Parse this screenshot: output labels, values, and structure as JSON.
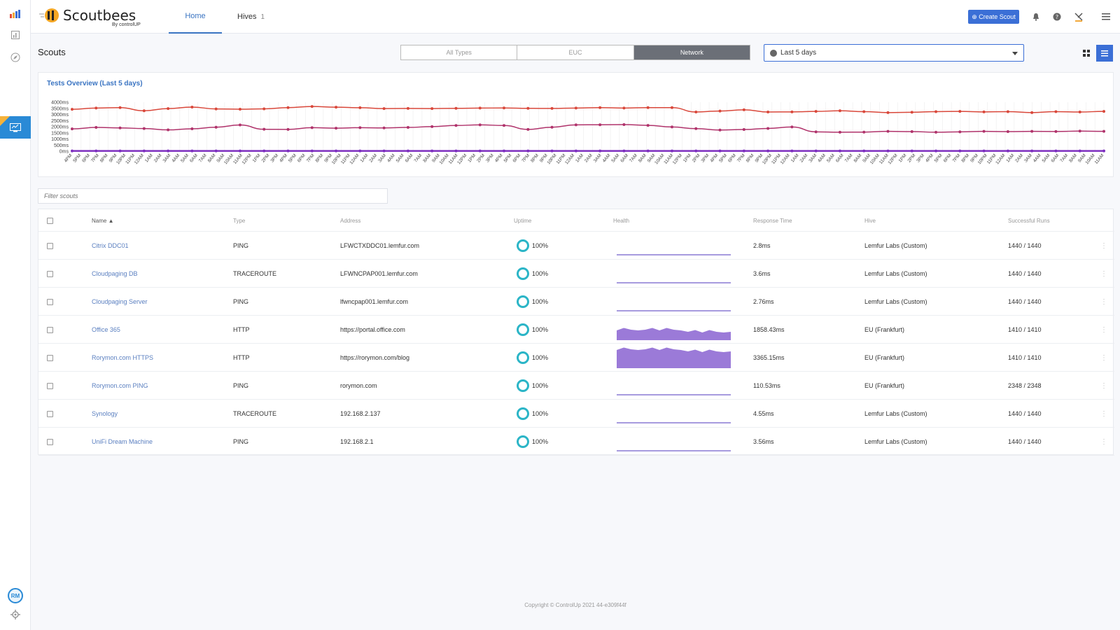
{
  "app": {
    "brand": "Scoutbees",
    "brand_sub": "By controlUP"
  },
  "rail": {
    "icons": [
      "bar-chart-icon",
      "report-icon",
      "compass-icon",
      "monitor-icon",
      "avatar",
      "gear-icon"
    ],
    "avatar_initials": "RM"
  },
  "topnav": {
    "tabs": [
      {
        "label": "Home",
        "active": true
      },
      {
        "label": "Hives",
        "count": "1"
      }
    ],
    "create_scout": "⊕ Create Scout"
  },
  "page": {
    "title": "Scouts",
    "type_filter": [
      "All Types",
      "EUC",
      "Network"
    ],
    "type_filter_active": "Network",
    "date_range": "Last 5 days"
  },
  "chart_data": {
    "type": "line",
    "title": "Tests Overview (Last 5 days)",
    "y_ticks": [
      "4000ms",
      "3500ms",
      "3000ms",
      "2500ms",
      "2000ms",
      "1500ms",
      "1000ms",
      "500ms",
      "0ms"
    ],
    "ylim": [
      0,
      4000
    ],
    "x_tick_labels": [
      "4PM",
      "5PM",
      "6PM",
      "7PM",
      "8PM",
      "9PM",
      "10PM",
      "11PM",
      "12AM",
      "1AM",
      "2AM",
      "3AM",
      "4AM",
      "5AM",
      "6AM",
      "7AM",
      "8AM",
      "9AM",
      "10AM",
      "11AM",
      "12PM",
      "1PM",
      "2PM",
      "3PM",
      "4PM",
      "5PM",
      "6PM",
      "7PM",
      "8PM",
      "9PM",
      "10PM",
      "11PM",
      "12AM",
      "1AM",
      "2AM",
      "3AM",
      "4AM",
      "5AM",
      "6AM",
      "7AM",
      "8AM",
      "9AM",
      "10AM",
      "11AM",
      "12PM",
      "1PM",
      "2PM",
      "3PM",
      "4PM",
      "5PM",
      "6PM",
      "7PM",
      "8PM",
      "9PM",
      "10PM",
      "11PM",
      "12AM",
      "1AM",
      "2AM",
      "3AM",
      "4AM",
      "5AM",
      "6AM",
      "7AM",
      "8AM",
      "9AM",
      "10AM",
      "11AM",
      "12PM",
      "1PM",
      "2PM",
      "3PM",
      "4PM",
      "5PM",
      "6PM",
      "7PM",
      "8PM",
      "9PM",
      "10PM",
      "11PM",
      "12AM",
      "1AM",
      "2AM",
      "3AM",
      "4AM",
      "5AM",
      "6AM",
      "7AM",
      "8AM",
      "9AM",
      "10AM",
      "11AM",
      "12PM",
      "1PM",
      "2PM",
      "3PM",
      "4PM",
      "5PM",
      "6PM",
      "7PM",
      "8PM",
      "9PM",
      "10PM",
      "11PM",
      "12AM",
      "1AM",
      "2AM",
      "3AM",
      "4AM",
      "5AM",
      "6AM",
      "7AM",
      "8AM",
      "9AM",
      "10AM",
      "11AM"
    ],
    "series": [
      {
        "color": "#d9483b",
        "values": [
          3420,
          3520,
          3560,
          3300,
          3480,
          3600,
          3450,
          3430,
          3460,
          3560,
          3650,
          3590,
          3550,
          3480,
          3490,
          3480,
          3500,
          3520,
          3530,
          3500,
          3490,
          3520,
          3560,
          3520,
          3560,
          3560,
          3200,
          3280,
          3380,
          3200,
          3210,
          3250,
          3300,
          3230,
          3150,
          3180,
          3230,
          3250,
          3210,
          3230,
          3150,
          3230,
          3200,
          3250
        ]
      },
      {
        "color": "#b0336b",
        "values": [
          1820,
          1940,
          1900,
          1850,
          1740,
          1830,
          1960,
          2140,
          1790,
          1780,
          1920,
          1880,
          1920,
          1900,
          1940,
          2010,
          2100,
          2150,
          2100,
          1780,
          1960,
          2150,
          2160,
          2170,
          2110,
          1980,
          1840,
          1730,
          1770,
          1860,
          1980,
          1580,
          1550,
          1560,
          1620,
          1600,
          1550,
          1580,
          1620,
          1600,
          1620,
          1610,
          1640,
          1620
        ]
      },
      {
        "color": "#7d2fbf",
        "values": [
          20,
          20,
          20,
          20,
          20,
          20,
          20,
          20,
          20,
          20,
          20,
          20,
          20,
          20,
          20,
          20,
          20,
          20,
          20,
          20,
          20,
          20,
          20,
          20,
          20,
          20,
          20,
          20,
          20,
          20,
          20,
          20,
          20,
          20,
          20,
          20,
          20,
          20,
          20,
          20,
          20,
          20,
          20,
          20
        ]
      }
    ]
  },
  "filter": {
    "placeholder": "Filter scouts"
  },
  "table": {
    "headers": [
      "Name ▲",
      "Type",
      "Address",
      "Uptime",
      "Health",
      "Response Time",
      "Hive",
      "Successful Runs"
    ],
    "rows": [
      {
        "name": "Citrix DDC01",
        "type": "PING",
        "address": "LFWCTXDDC01.lemfur.com",
        "uptime": "100%",
        "health": "flat",
        "response": "2.8ms",
        "hive": "Lemfur Labs (Custom)",
        "runs": "1440 / 1440"
      },
      {
        "name": "Cloudpaging DB",
        "type": "TRACEROUTE",
        "address": "LFWNCPAP001.lemfur.com",
        "uptime": "100%",
        "health": "flat",
        "response": "3.6ms",
        "hive": "Lemfur Labs (Custom)",
        "runs": "1440 / 1440"
      },
      {
        "name": "Cloudpaging Server",
        "type": "PING",
        "address": "lfwncpap001.lemfur.com",
        "uptime": "100%",
        "health": "flat",
        "response": "2.76ms",
        "hive": "Lemfur Labs (Custom)",
        "runs": "1440 / 1440"
      },
      {
        "name": "Office 365",
        "type": "HTTP",
        "address": "https://portal.office.com",
        "uptime": "100%",
        "health": "area-small",
        "response": "1858.43ms",
        "hive": "EU (Frankfurt)",
        "runs": "1410 / 1410"
      },
      {
        "name": "Rorymon.com HTTPS",
        "type": "HTTP",
        "address": "https://rorymon.com/blog",
        "uptime": "100%",
        "health": "area-large",
        "response": "3365.15ms",
        "hive": "EU (Frankfurt)",
        "runs": "1410 / 1410"
      },
      {
        "name": "Rorymon.com PING",
        "type": "PING",
        "address": "rorymon.com",
        "uptime": "100%",
        "health": "flat",
        "response": "110.53ms",
        "hive": "EU (Frankfurt)",
        "runs": "2348 / 2348"
      },
      {
        "name": "Synology",
        "type": "TRACEROUTE",
        "address": "192.168.2.137",
        "uptime": "100%",
        "health": "flat",
        "response": "4.55ms",
        "hive": "Lemfur Labs (Custom)",
        "runs": "1440 / 1440"
      },
      {
        "name": "UniFi Dream Machine",
        "type": "PING",
        "address": "192.168.2.1",
        "uptime": "100%",
        "health": "flat",
        "response": "3.56ms",
        "hive": "Lemfur Labs (Custom)",
        "runs": "1440 / 1440"
      }
    ]
  },
  "footer": {
    "text": "Copyright © ControlUp 2021 44-e309f44f"
  },
  "colors": {
    "accent": "#3b6fd6",
    "uptime_ring": "#2bb5c7",
    "health_fill": "#9b7ad8"
  }
}
